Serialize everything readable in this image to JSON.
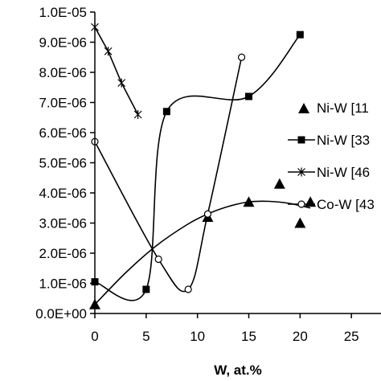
{
  "chart_data": {
    "type": "scatter",
    "xlabel": "W, at.%",
    "ylabel": "",
    "xlim": [
      0,
      30
    ],
    "ylim": [
      0,
      1e-05
    ],
    "x_ticks": [
      "0",
      "5",
      "10",
      "15",
      "20",
      "25"
    ],
    "x_tick_values": [
      0,
      5,
      10,
      15,
      20,
      25
    ],
    "y_ticks": [
      "0.0E+00",
      "1.0E-06",
      "2.0E-06",
      "3.0E-06",
      "4.0E-06",
      "5.0E-06",
      "6.0E-06",
      "7.0E-06",
      "8.0E-06",
      "9.0E-06",
      "1.0E-05"
    ],
    "y_tick_values": [
      0,
      1e-06,
      2e-06,
      3e-06,
      4e-06,
      5e-06,
      6e-06,
      7e-06,
      8e-06,
      9e-06,
      1e-05
    ],
    "grid": false,
    "legend_position": "right",
    "series": [
      {
        "name": "Ni-W [11",
        "marker": "triangle",
        "line": "trend",
        "x": [
          0,
          11,
          15,
          18,
          20,
          21
        ],
        "y": [
          3e-07,
          3.2e-06,
          3.7e-06,
          4.3e-06,
          3e-06,
          3.7e-06
        ],
        "trend_x": [
          0,
          3,
          6,
          9,
          11,
          13,
          15,
          17,
          19,
          21
        ],
        "trend_y": [
          3e-07,
          1.35e-06,
          2.25e-06,
          2.95e-06,
          3.3e-06,
          3.55e-06,
          3.7e-06,
          3.72e-06,
          3.65e-06,
          3.5e-06
        ]
      },
      {
        "name": "Ni-W [33",
        "marker": "square",
        "line": "smooth",
        "x": [
          0,
          5,
          7,
          15,
          20
        ],
        "y": [
          1.05e-06,
          8e-07,
          6.7e-06,
          7.2e-06,
          9.25e-06
        ]
      },
      {
        "name": "Ni-W [46",
        "marker": "star",
        "line": "straight",
        "x": [
          0,
          1.3,
          2.6,
          4.2
        ],
        "y": [
          9.5e-06,
          8.7e-06,
          7.65e-06,
          6.6e-06
        ]
      },
      {
        "name": "Co-W [43",
        "marker": "circle",
        "line": "smooth",
        "x": [
          0,
          6.2,
          9.1,
          11,
          14.3
        ],
        "y": [
          5.7e-06,
          1.8e-06,
          8e-07,
          3.3e-06,
          8.5e-06
        ]
      }
    ]
  }
}
